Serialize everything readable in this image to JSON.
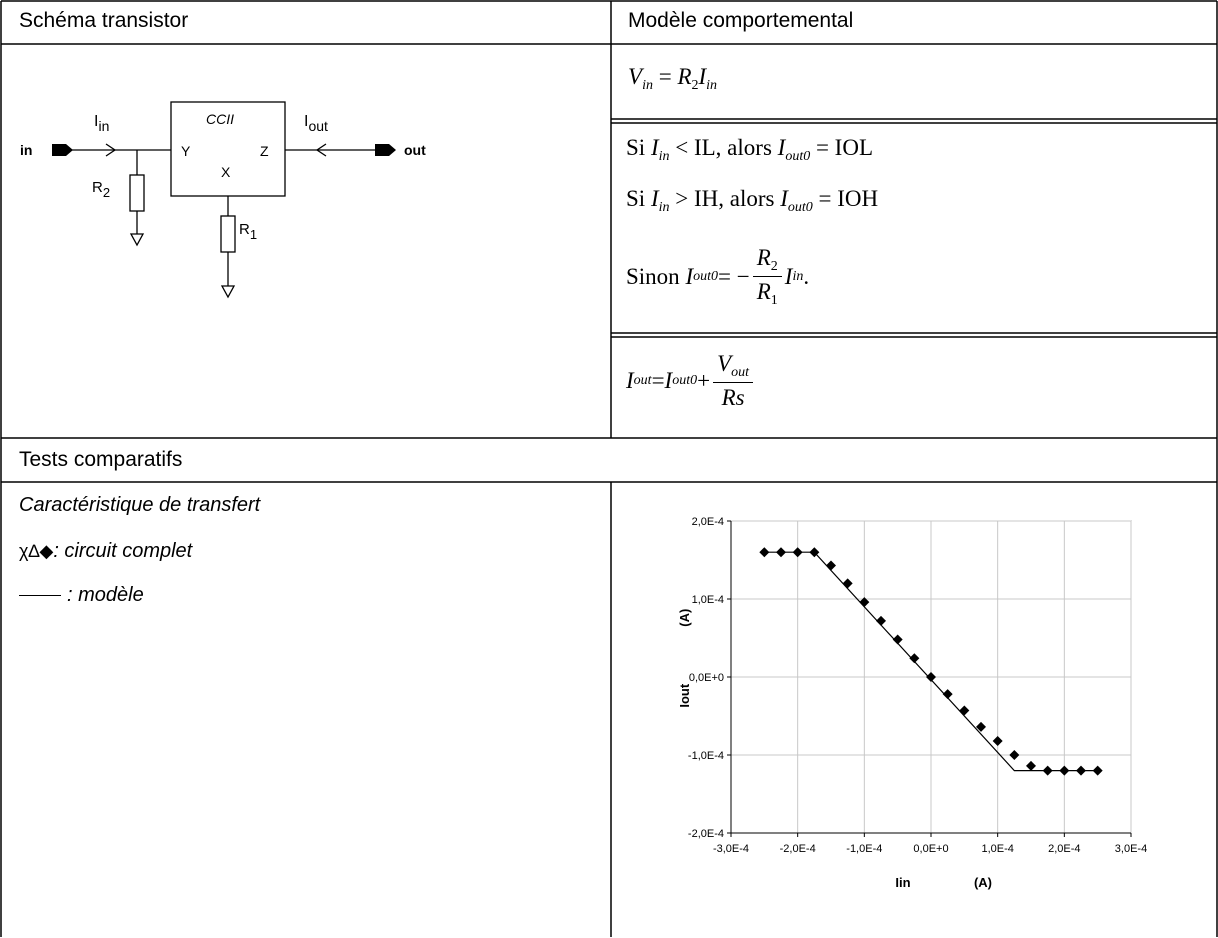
{
  "header": {
    "left_title": "Schéma transistor",
    "right_title": "Modèle comportemental",
    "tests_title": "Tests comparatifs"
  },
  "schematic": {
    "in_label": "in",
    "out_label": "out",
    "iin_label": "I",
    "iin_sub": "in",
    "iout_label": "I",
    "iout_sub": "out",
    "block_name": "CCII",
    "port_y": "Y",
    "port_z": "Z",
    "port_x": "X",
    "r2_label": "R",
    "r2_sub": "2",
    "r1_label": "R",
    "r1_sub": "1"
  },
  "model": {
    "vin": {
      "lhs": "V",
      "lhs_sub": "in",
      "eq": " = ",
      "r": "R",
      "r_sub": "2",
      "i": "I",
      "i_sub": "in"
    },
    "cond1": {
      "prefix": "Si ",
      "i": "I",
      "i_sub": "in",
      "rel": " < IL, alors ",
      "o": "I",
      "o_sub": "out0",
      "rhs": " = IOL"
    },
    "cond2": {
      "prefix": "Si ",
      "i": "I",
      "i_sub": "in",
      "rel": " > IH, alors ",
      "o": "I",
      "o_sub": "out0",
      "rhs": " = IOH"
    },
    "cond3": {
      "prefix": "Sinon ",
      "o": "I",
      "o_sub": "out0",
      "eq": " = −",
      "num": "R",
      "num_sub": "2",
      "den": "R",
      "den_sub": "1",
      "i": "I",
      "i_sub": "in",
      "end": " ."
    },
    "iout": {
      "lhs": "I",
      "lhs_sub": "out",
      "eq": " = ",
      "t1": "I",
      "t1_sub": "out0",
      "plus": "+",
      "num": "V",
      "num_sub": "out",
      "den": "Rs"
    }
  },
  "tests": {
    "title": "Caractéristique de transfert",
    "legend_markers": "χ∆◆",
    "legend_circuit": ": circuit complet",
    "legend_model": ": modèle"
  },
  "chart_data": {
    "type": "scatter",
    "xlabel": "Iin",
    "xlabel_unit": "(A)",
    "ylabel": "Iout",
    "ylabel_unit": "(A)",
    "xlim": [
      -0.0003,
      0.0003
    ],
    "ylim": [
      -0.0002,
      0.0002
    ],
    "x_ticks": [
      -0.0003,
      -0.0002,
      -0.0001,
      0,
      0.0001,
      0.0002,
      0.0003
    ],
    "x_tick_labels": [
      "-3,0E-4",
      "-2,0E-4",
      "-1,0E-4",
      "0,0E+0",
      "1,0E-4",
      "2,0E-4",
      "3,0E-4"
    ],
    "y_ticks": [
      0.0002,
      0.0001,
      0,
      -0.0001,
      -0.0002
    ],
    "y_tick_labels": [
      "2,0E-4",
      "1,0E-4",
      "0,0E+0",
      "-1,0E-4",
      "-2,0E-4"
    ],
    "grid": true,
    "series": [
      {
        "name": "circuit complet",
        "marker": "diamond",
        "x": [
          -0.00025,
          -0.000225,
          -0.0002,
          -0.000175,
          -0.00015,
          -0.000125,
          -0.0001,
          -7.5e-05,
          -5e-05,
          -2.5e-05,
          0,
          2.5e-05,
          5e-05,
          7.5e-05,
          0.0001,
          0.000125,
          0.00015,
          0.000175,
          0.0002,
          0.000225,
          0.00025
        ],
        "y": [
          0.00016,
          0.00016,
          0.00016,
          0.00016,
          0.000143,
          0.00012,
          9.6e-05,
          7.2e-05,
          4.8e-05,
          2.4e-05,
          0,
          -2.2e-05,
          -4.3e-05,
          -6.4e-05,
          -8.2e-05,
          -0.0001,
          -0.000114,
          -0.00012,
          -0.00012,
          -0.00012,
          -0.00012
        ]
      },
      {
        "name": "modèle",
        "marker": "none",
        "x": [
          -0.00025,
          -0.000175,
          0.000125,
          0.00025
        ],
        "y": [
          0.00016,
          0.00016,
          -0.00012,
          -0.00012
        ]
      }
    ]
  }
}
